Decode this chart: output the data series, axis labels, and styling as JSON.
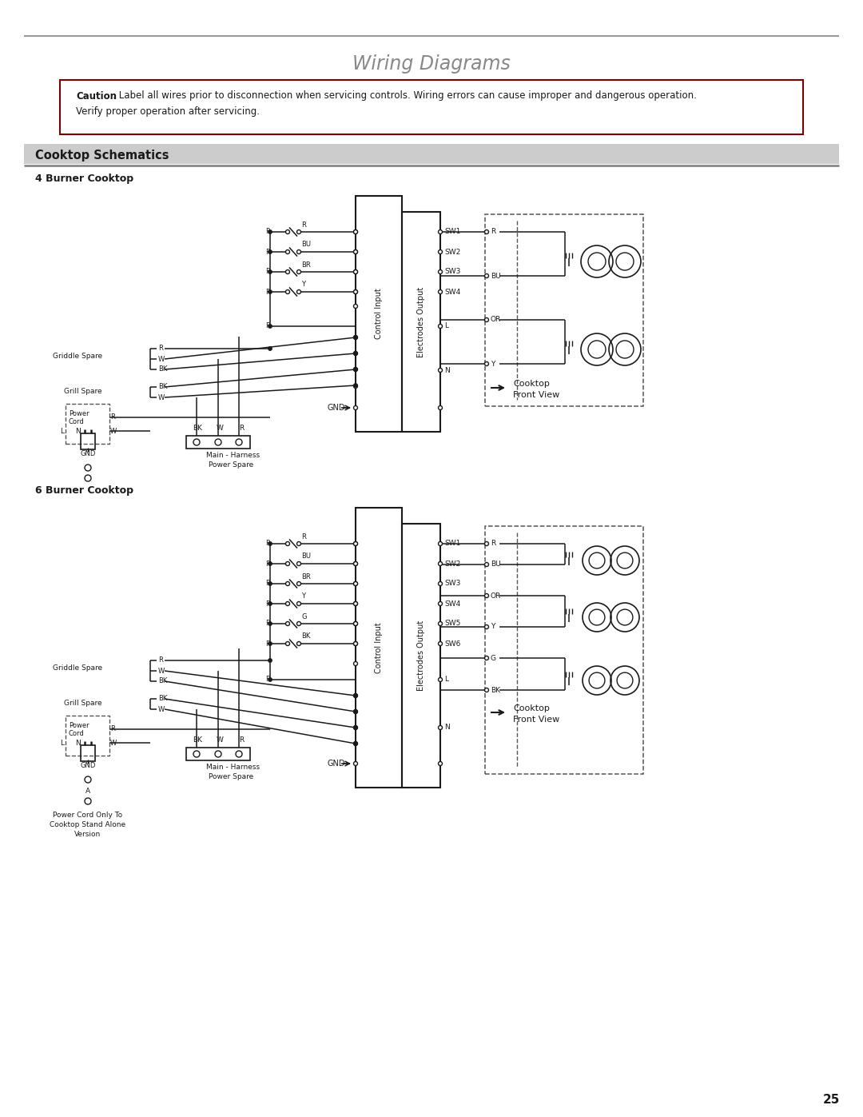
{
  "title": "Wiring Diagrams",
  "caution_bold": "Caution",
  "caution_rest": ": Label all wires prior to disconnection when servicing controls. Wiring errors can cause improper and dangerous operation.",
  "caution_line2": "Verify proper operation after servicing.",
  "section_title": "Cooktop Schematics",
  "diagram1_title": "4 Burner Cooktop",
  "diagram2_title": "6 Burner Cooktop",
  "page_number": "25",
  "bg_color": "#ffffff",
  "sw_labels_4": [
    "SW1",
    "SW2",
    "SW3",
    "SW4"
  ],
  "sw_labels_6": [
    "SW1",
    "SW2",
    "SW3",
    "SW4",
    "SW5",
    "SW6"
  ],
  "wire_colors_4": [
    "R",
    "BU",
    "BR",
    "Y"
  ],
  "wire_colors_6": [
    "R",
    "BU",
    "BR",
    "Y",
    "G",
    "BK"
  ],
  "fv_wires_4": [
    "R",
    "BU",
    "OR",
    "Y"
  ],
  "fv_wires_6": [
    "R",
    "BU",
    "OR",
    "Y",
    "G",
    "BK"
  ],
  "note_text": "Power Cord Only To\nCooktop Stand Alone\nVersion"
}
